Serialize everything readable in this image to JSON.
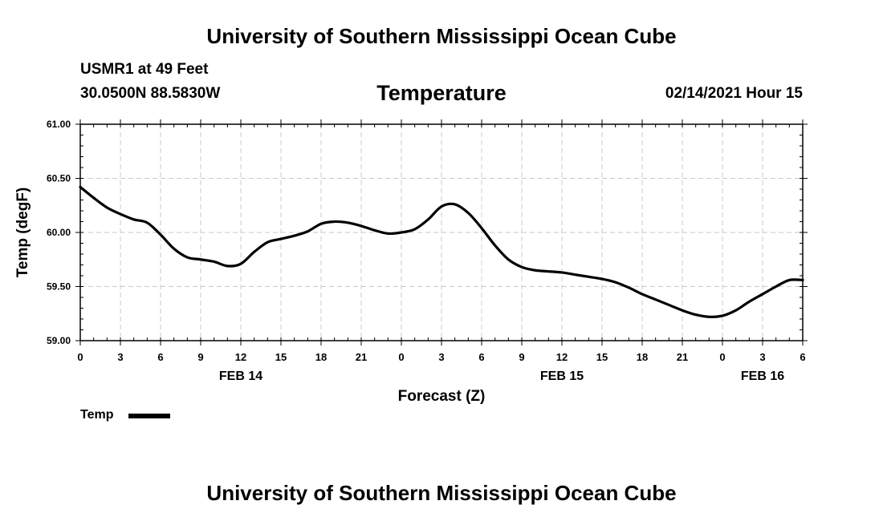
{
  "header": {
    "title": "University of Southern Mississippi Ocean Cube",
    "station": "USMR1 at 49 Feet",
    "location": "30.0500N 88.5830W",
    "chart_title": "Temperature",
    "timestamp": "02/14/2021 Hour 15"
  },
  "footer": {
    "title": "University of Southern Mississippi Ocean Cube"
  },
  "legend": {
    "items": [
      {
        "label": "Temp",
        "color": "#000000"
      }
    ]
  },
  "chart_data": {
    "type": "line",
    "title": "Temperature",
    "xlabel": "Forecast (Z)",
    "ylabel": "Temp (degF)",
    "ylim": [
      59.0,
      61.0
    ],
    "yticks": [
      "59.00",
      "59.50",
      "60.00",
      "60.50",
      "61.00"
    ],
    "xlim": [
      0,
      54
    ],
    "xticks": [
      {
        "x": 0,
        "label": "0"
      },
      {
        "x": 3,
        "label": "3"
      },
      {
        "x": 6,
        "label": "6"
      },
      {
        "x": 9,
        "label": "9"
      },
      {
        "x": 12,
        "label": "12"
      },
      {
        "x": 15,
        "label": "15"
      },
      {
        "x": 18,
        "label": "18"
      },
      {
        "x": 21,
        "label": "21"
      },
      {
        "x": 24,
        "label": "0"
      },
      {
        "x": 27,
        "label": "3"
      },
      {
        "x": 30,
        "label": "6"
      },
      {
        "x": 33,
        "label": "9"
      },
      {
        "x": 36,
        "label": "12"
      },
      {
        "x": 39,
        "label": "15"
      },
      {
        "x": 42,
        "label": "18"
      },
      {
        "x": 45,
        "label": "21"
      },
      {
        "x": 48,
        "label": "0"
      },
      {
        "x": 51,
        "label": "3"
      },
      {
        "x": 54,
        "label": "6"
      }
    ],
    "date_labels": [
      {
        "x": 12,
        "label": "FEB 14"
      },
      {
        "x": 36,
        "label": "FEB 15"
      },
      {
        "x": 51,
        "label": "FEB 16"
      }
    ],
    "grid": true,
    "series": [
      {
        "name": "Temp",
        "color": "#000000",
        "x": [
          0,
          1,
          2,
          3,
          4,
          5,
          6,
          7,
          8,
          9,
          10,
          11,
          12,
          13,
          14,
          15,
          16,
          17,
          18,
          19,
          20,
          21,
          22,
          23,
          24,
          25,
          26,
          27,
          28,
          29,
          30,
          31,
          32,
          33,
          34,
          35,
          36,
          37,
          38,
          39,
          40,
          41,
          42,
          43,
          44,
          45,
          46,
          47,
          48,
          49,
          50,
          51,
          52,
          53,
          54
        ],
        "values": [
          60.42,
          60.32,
          60.23,
          60.17,
          60.12,
          60.09,
          59.98,
          59.85,
          59.77,
          59.75,
          59.73,
          59.69,
          59.71,
          59.82,
          59.91,
          59.94,
          59.97,
          60.01,
          60.08,
          60.1,
          60.09,
          60.06,
          60.02,
          59.99,
          60.0,
          60.03,
          60.12,
          60.24,
          60.26,
          60.18,
          60.04,
          59.88,
          59.75,
          59.68,
          59.65,
          59.64,
          59.63,
          59.61,
          59.59,
          59.57,
          59.54,
          59.49,
          59.43,
          59.38,
          59.33,
          59.28,
          59.24,
          59.22,
          59.23,
          59.28,
          59.36,
          59.43,
          59.5,
          59.56,
          59.56
        ]
      }
    ]
  }
}
